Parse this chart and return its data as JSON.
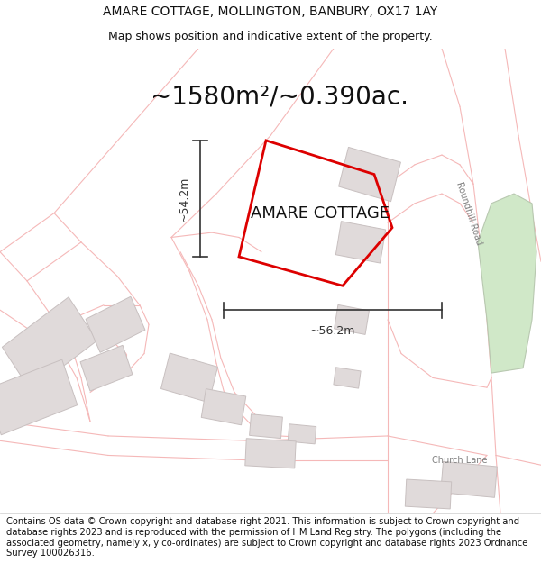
{
  "title": "AMARE COTTAGE, MOLLINGTON, BANBURY, OX17 1AY",
  "subtitle": "Map shows position and indicative extent of the property.",
  "area_text": "~1580m²/~0.390ac.",
  "property_label": "AMARE COTTAGE",
  "dim_height": "~54.2m",
  "dim_width": "~56.2m",
  "footer": "Contains OS data © Crown copyright and database right 2021. This information is subject to Crown copyright and database rights 2023 and is reproduced with the permission of HM Land Registry. The polygons (including the associated geometry, namely x, y co-ordinates) are subject to Crown copyright and database rights 2023 Ordnance Survey 100026316.",
  "bg_color": "#ffffff",
  "road_line_color": "#f5b8b8",
  "road_thick_color": "#e8a8a8",
  "building_color": "#e0dada",
  "building_edge": "#c8c0c0",
  "green_color": "#d0e8c8",
  "green_edge": "#b8c8b0",
  "plot_color": "#dd0000",
  "dim_color": "#333333",
  "text_color": "#111111",
  "road_label_color": "#808080",
  "title_fontsize": 10,
  "subtitle_fontsize": 9,
  "area_fontsize": 20,
  "label_fontsize": 13,
  "footer_fontsize": 7.2,
  "dim_fontsize": 9,
  "road_label_fontsize": 7
}
